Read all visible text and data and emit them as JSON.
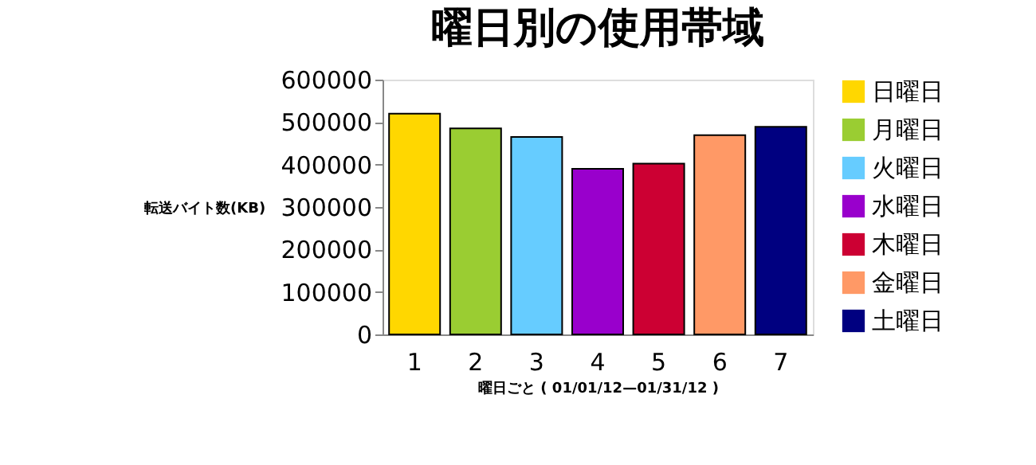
{
  "chart_data": {
    "type": "bar",
    "title": "曜日別の使用帯域",
    "xlabel": "曜日ごと ( 01/01/12—01/31/12 )",
    "ylabel": "転送バイト数(KB)",
    "categories": [
      "1",
      "2",
      "3",
      "4",
      "5",
      "6",
      "7"
    ],
    "series": [
      {
        "name": "日曜日",
        "color": "#ffd700",
        "values": [
          520000,
          null,
          null,
          null,
          null,
          null,
          null
        ]
      },
      {
        "name": "月曜日",
        "color": "#9acd32",
        "values": [
          null,
          485000,
          null,
          null,
          null,
          null,
          null
        ]
      },
      {
        "name": "火曜日",
        "color": "#66ccff",
        "values": [
          null,
          null,
          465000,
          null,
          null,
          null,
          null
        ]
      },
      {
        "name": "水曜日",
        "color": "#9900cc",
        "values": [
          null,
          null,
          null,
          390000,
          null,
          null,
          null
        ]
      },
      {
        "name": "木曜日",
        "color": "#cc0033",
        "values": [
          null,
          null,
          null,
          null,
          402000,
          null,
          null
        ]
      },
      {
        "name": "金曜日",
        "color": "#ff9966",
        "values": [
          null,
          null,
          null,
          null,
          null,
          469000,
          null
        ]
      },
      {
        "name": "土曜日",
        "color": "#000080",
        "values": [
          null,
          null,
          null,
          null,
          null,
          null,
          489000
        ]
      }
    ],
    "ylim": [
      0,
      600000
    ],
    "yticks": [
      0,
      100000,
      200000,
      300000,
      400000,
      500000,
      600000
    ],
    "grid": false,
    "legend": "right"
  }
}
